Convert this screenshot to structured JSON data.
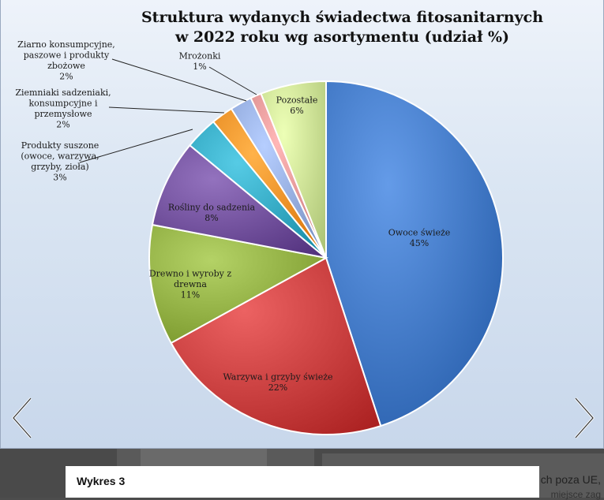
{
  "chart_data": {
    "type": "pie",
    "title_lines": [
      "Struktura wydanych świadectwa fitosanitarnych",
      "w 2022  roku wg asortymentu (udział %)"
    ],
    "slices": [
      {
        "label_lines": [
          "Owoce świeże"
        ],
        "value": 45,
        "value_label": "45%",
        "color": "#3c73c0"
      },
      {
        "label_lines": [
          "Warzywa i grzyby świeże"
        ],
        "value": 22,
        "value_label": "22%",
        "color": "#c43a3a"
      },
      {
        "label_lines": [
          "Drewno i wyroby z",
          "drewna"
        ],
        "value": 11,
        "value_label": "11%",
        "color": "#8caa3e"
      },
      {
        "label_lines": [
          "Rośliny do sadzenia"
        ],
        "value": 8,
        "value_label": "8%",
        "color": "#6b4a96"
      },
      {
        "label_lines": [
          "Produkty suszone",
          "(owoce, warzywa,",
          "grzyby, zioła)"
        ],
        "value": 3,
        "value_label": "3%",
        "color": "#2ea3bd"
      },
      {
        "label_lines": [
          "Ziemniaki sadzeniaki,",
          "konsumpcyjne i",
          "przemysłowe"
        ],
        "value": 2,
        "value_label": "2%",
        "color": "#f08a21"
      },
      {
        "label_lines": [
          "Ziarno konsumpcyjne,",
          "paszowe i produkty",
          "zbożowe"
        ],
        "value": 2,
        "value_label": "2%",
        "color": "#8ea6d8"
      },
      {
        "label_lines": [
          "Mrożonki"
        ],
        "value": 1,
        "value_label": "1%",
        "color": "#de8f8f"
      },
      {
        "label_lines": [
          "Pozostałe"
        ],
        "value": 6,
        "value_label": "6%",
        "color": "#c5dc8e"
      }
    ]
  },
  "caption": "Wykres 3",
  "background_text": [
    "ch poza UE,",
    "miejsce zag"
  ],
  "nav": {
    "prev_icon": "chevron-left-icon",
    "next_icon": "chevron-right-icon"
  }
}
